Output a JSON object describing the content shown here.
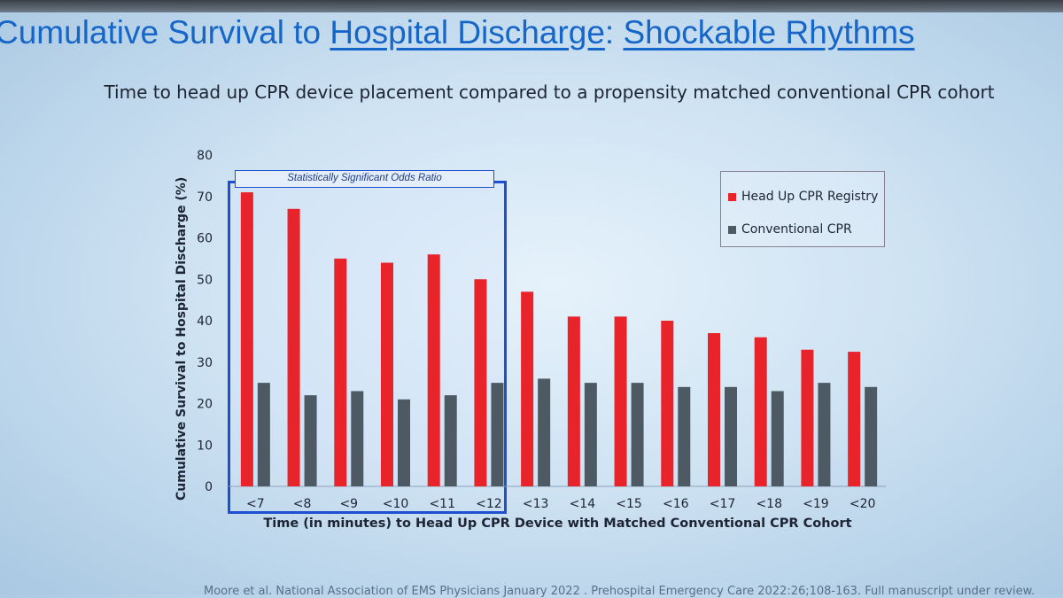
{
  "slide": {
    "title_part1": "Cumulative Survival to ",
    "title_part2": "Hospital Discharge",
    "title_part3": ": ",
    "title_part4": "Shockable Rhythms",
    "subtitle": "Time to head up CPR device placement compared to a propensity matched conventional CPR cohort",
    "significance_label": "Statistically Significant Odds Ratio",
    "footer": "Moore et al. National Association of EMS Physicians January 2022 . Prehospital Emergency Care 2022:26;108-163. Full manuscript under review."
  },
  "chart_data": {
    "type": "bar",
    "title": "Time to head up CPR device placement compared to a propensity matched conventional CPR cohort",
    "xlabel": "Time (in minutes) to Head Up CPR Device with Matched Conventional CPR Cohort",
    "ylabel": "Cumulative Survival to Hospital Discharge (%)",
    "ylim": [
      0,
      80
    ],
    "yticks": [
      0,
      10,
      20,
      30,
      40,
      50,
      60,
      70,
      80
    ],
    "grid": false,
    "legend_position": "top-right",
    "categories": [
      "<7",
      "<8",
      "<9",
      "<10",
      "<11",
      "<12",
      "<13",
      "<14",
      "<15",
      "<16",
      "<17",
      "<18",
      "<19",
      "<20"
    ],
    "series": [
      {
        "name": "Head Up CPR Registry",
        "color": "#e8232a",
        "values": [
          71,
          67,
          55,
          54,
          56,
          50,
          47,
          41,
          41,
          40,
          37,
          36,
          33,
          32.5
        ]
      },
      {
        "name": "Conventional CPR",
        "color": "#4d5a64",
        "values": [
          25,
          22,
          23,
          21,
          22,
          25,
          26,
          25,
          25,
          24,
          24,
          23,
          25,
          24
        ]
      }
    ],
    "highlight_categories": [
      "<7",
      "<8",
      "<9",
      "<10",
      "<11",
      "<12"
    ]
  }
}
